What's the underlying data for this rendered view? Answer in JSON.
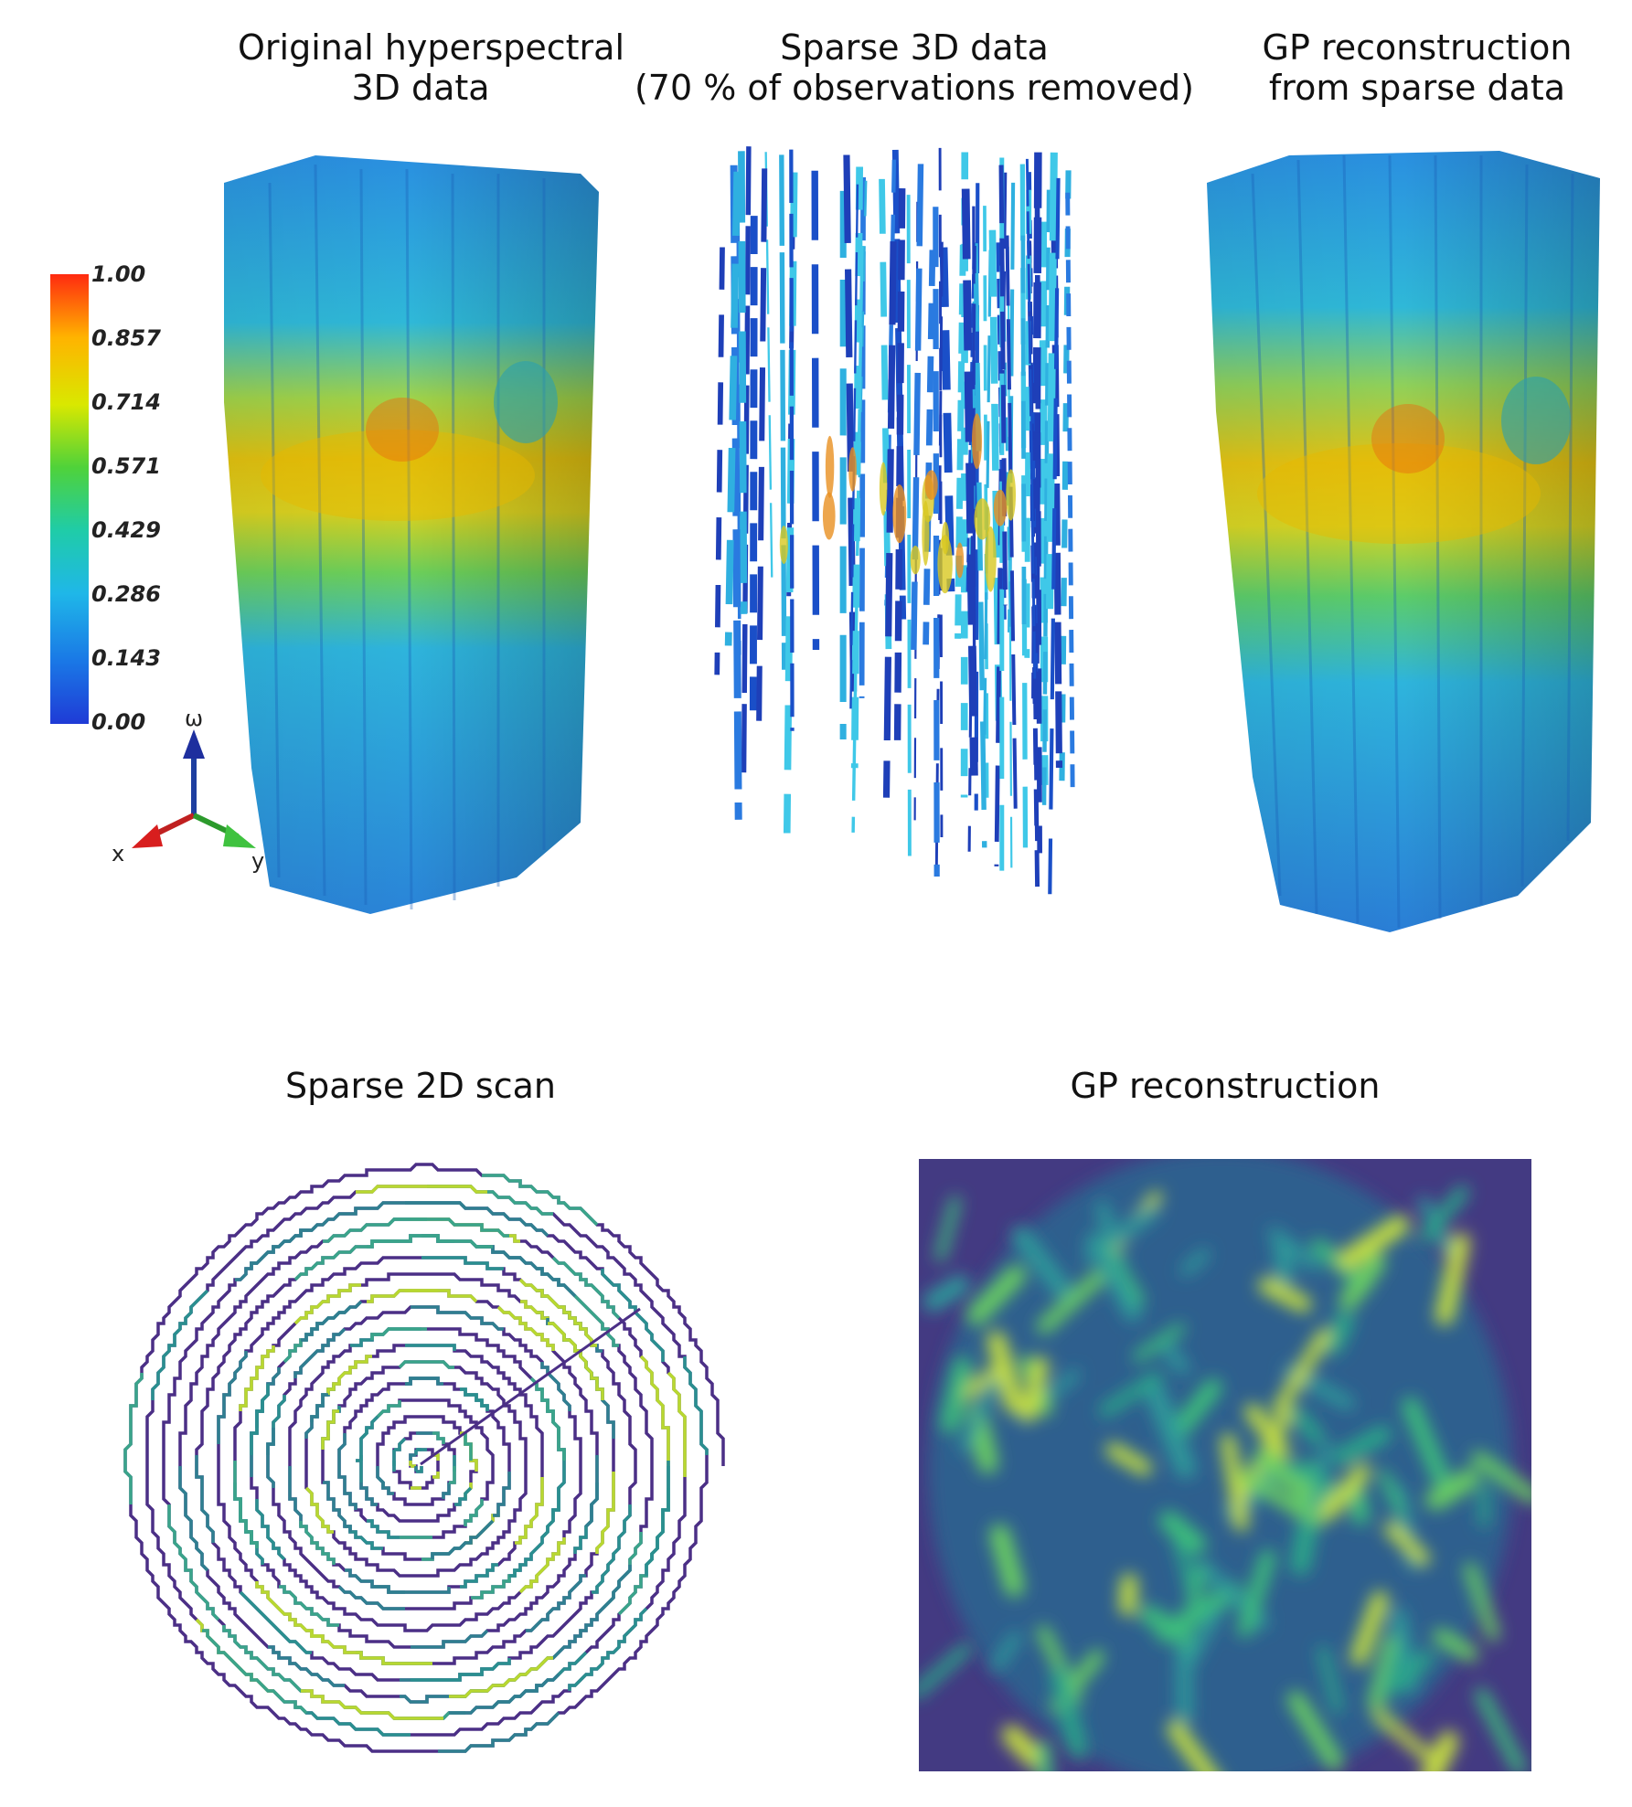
{
  "titles": {
    "original": [
      "Original hyperspectral",
      "3D data"
    ],
    "sparse3d": [
      "Sparse 3D data",
      "(70 % of observations removed)"
    ],
    "gp3d": [
      "GP reconstruction",
      "from sparse data"
    ],
    "sparse2d": "Sparse 2D scan",
    "gp2d": "GP reconstruction"
  },
  "colorbar": {
    "ticks": [
      "1.00",
      "0.857",
      "0.714",
      "0.571",
      "0.429",
      "0.286",
      "0.143",
      "0.00"
    ],
    "colors": [
      "#ff2a10",
      "#ffb300",
      "#d9e800",
      "#4fd23a",
      "#1fcca8",
      "#1fb7e8",
      "#1a78e6",
      "#1f3bd6"
    ]
  },
  "axes_triad": {
    "up": "ω",
    "left": "x",
    "right": "y"
  }
}
